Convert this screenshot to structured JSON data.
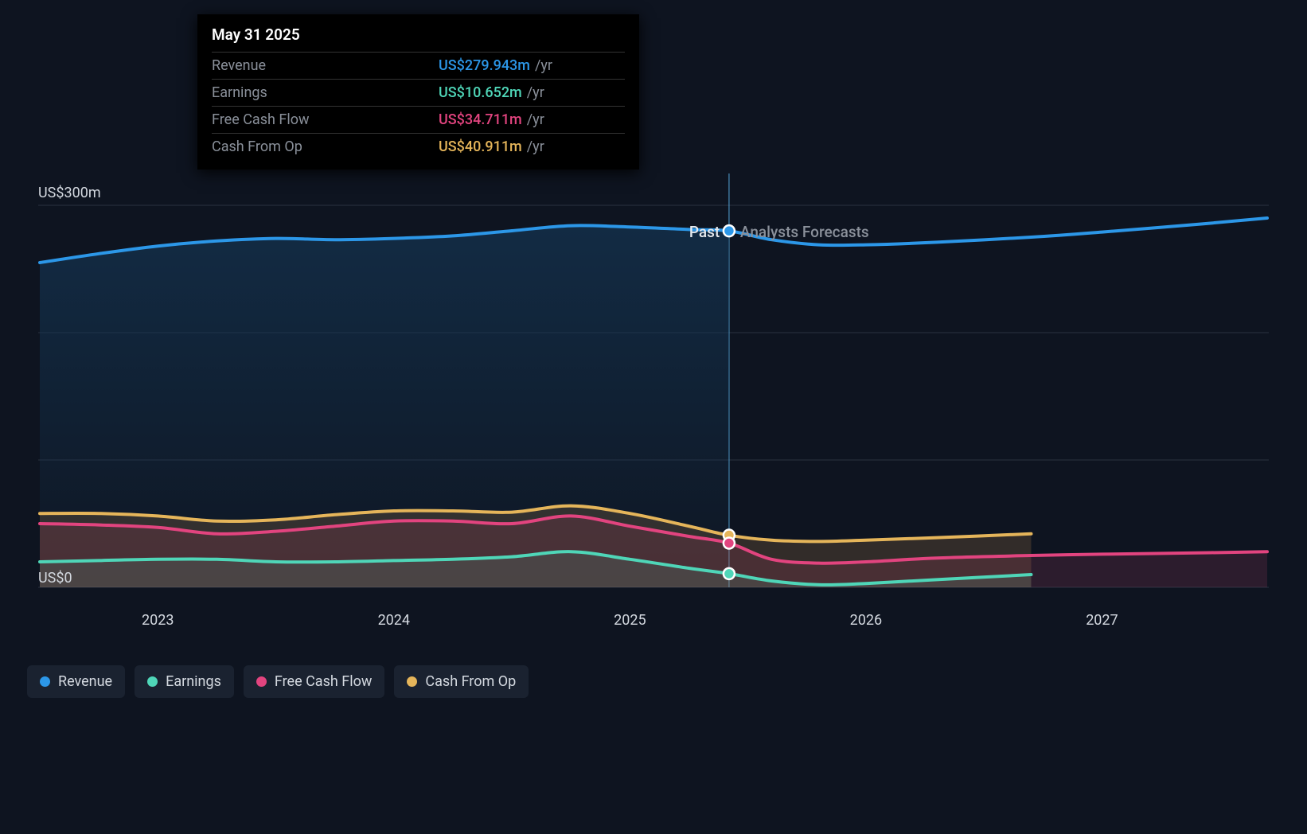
{
  "chart": {
    "type": "area-line",
    "background_color": "#0e1420",
    "text_color": "#d4d9e0",
    "grid_color": "#2a3240",
    "y_axis": {
      "label_top": "US$300m",
      "label_bottom": "US$0",
      "domain": [
        0,
        300
      ],
      "gridlines_at": [
        0,
        100,
        200,
        300
      ]
    },
    "x_axis": {
      "domain_years": [
        2022.5,
        2027.7
      ],
      "labels": [
        "2023",
        "2024",
        "2025",
        "2026",
        "2027"
      ]
    },
    "divider": {
      "x_year": 2025.42,
      "past_label": "Past",
      "past_color": "#e6e9ee",
      "forecast_label": "Analysts Forecasts",
      "forecast_color": "#8a909a",
      "line_color": "#5db6ed",
      "past_fill": "#143553",
      "past_fill_opacity": 0.45
    },
    "series": [
      {
        "id": "revenue",
        "label": "Revenue",
        "color": "#2c97e8",
        "fill": "#2c97e8",
        "fill_opacity": 0.18,
        "line_width": 4,
        "points_year_value": [
          [
            2022.5,
            255
          ],
          [
            2022.75,
            262
          ],
          [
            2023.0,
            268
          ],
          [
            2023.25,
            272
          ],
          [
            2023.5,
            274
          ],
          [
            2023.75,
            273
          ],
          [
            2024.0,
            274
          ],
          [
            2024.25,
            276
          ],
          [
            2024.5,
            280
          ],
          [
            2024.75,
            284
          ],
          [
            2025.0,
            283
          ],
          [
            2025.25,
            281
          ],
          [
            2025.42,
            279.9
          ],
          [
            2025.6,
            273
          ],
          [
            2025.8,
            269
          ],
          [
            2026.0,
            269
          ],
          [
            2026.3,
            271
          ],
          [
            2026.7,
            275
          ],
          [
            2027.0,
            279
          ],
          [
            2027.4,
            285
          ],
          [
            2027.7,
            290
          ]
        ],
        "marker": {
          "year": 2025.42,
          "value": 279.9
        }
      },
      {
        "id": "cash_from_op",
        "label": "Cash From Op",
        "color": "#e5b55a",
        "fill": "#b8844a",
        "fill_opacity": 0.22,
        "line_width": 4,
        "points_year_value": [
          [
            2022.5,
            58
          ],
          [
            2022.75,
            58
          ],
          [
            2023.0,
            56
          ],
          [
            2023.25,
            52
          ],
          [
            2023.5,
            53
          ],
          [
            2023.75,
            57
          ],
          [
            2024.0,
            60
          ],
          [
            2024.25,
            60
          ],
          [
            2024.5,
            59
          ],
          [
            2024.75,
            64
          ],
          [
            2025.0,
            58
          ],
          [
            2025.25,
            48
          ],
          [
            2025.42,
            40.9
          ],
          [
            2025.6,
            37
          ],
          [
            2025.8,
            36
          ],
          [
            2026.0,
            37
          ],
          [
            2026.3,
            39
          ],
          [
            2026.7,
            42
          ]
        ],
        "marker": {
          "year": 2025.42,
          "value": 40.9
        }
      },
      {
        "id": "free_cash_flow",
        "label": "Free Cash Flow",
        "color": "#e2447f",
        "fill": "#9b3a5d",
        "fill_opacity": 0.22,
        "line_width": 4,
        "points_year_value": [
          [
            2022.5,
            50
          ],
          [
            2022.75,
            49
          ],
          [
            2023.0,
            47
          ],
          [
            2023.25,
            42
          ],
          [
            2023.5,
            44
          ],
          [
            2023.75,
            48
          ],
          [
            2024.0,
            52
          ],
          [
            2024.25,
            52
          ],
          [
            2024.5,
            50
          ],
          [
            2024.75,
            56
          ],
          [
            2025.0,
            48
          ],
          [
            2025.25,
            40
          ],
          [
            2025.42,
            34.7
          ],
          [
            2025.6,
            22
          ],
          [
            2025.8,
            19
          ],
          [
            2026.0,
            20
          ],
          [
            2026.3,
            23
          ],
          [
            2026.7,
            25
          ],
          [
            2027.0,
            26
          ],
          [
            2027.4,
            27
          ],
          [
            2027.7,
            28
          ]
        ],
        "marker": {
          "year": 2025.42,
          "value": 34.7
        }
      },
      {
        "id": "earnings",
        "label": "Earnings",
        "color": "#4fd6b8",
        "fill": "#4fd6b8",
        "fill_opacity": 0.12,
        "line_width": 4,
        "points_year_value": [
          [
            2022.5,
            20
          ],
          [
            2022.75,
            21
          ],
          [
            2023.0,
            22
          ],
          [
            2023.25,
            22
          ],
          [
            2023.5,
            20
          ],
          [
            2023.75,
            20
          ],
          [
            2024.0,
            21
          ],
          [
            2024.25,
            22
          ],
          [
            2024.5,
            24
          ],
          [
            2024.75,
            28
          ],
          [
            2025.0,
            22
          ],
          [
            2025.25,
            15
          ],
          [
            2025.42,
            10.7
          ],
          [
            2025.6,
            5
          ],
          [
            2025.8,
            2
          ],
          [
            2026.0,
            3
          ],
          [
            2026.3,
            6
          ],
          [
            2026.7,
            10
          ]
        ],
        "marker": {
          "year": 2025.42,
          "value": 10.7
        }
      }
    ]
  },
  "tooltip": {
    "title": "May 31 2025",
    "rows": [
      {
        "label": "Revenue",
        "value": "US$279.943m",
        "suffix": "/yr",
        "color": "#2c97e8"
      },
      {
        "label": "Earnings",
        "value": "US$10.652m",
        "suffix": "/yr",
        "color": "#4fd6b8"
      },
      {
        "label": "Free Cash Flow",
        "value": "US$34.711m",
        "suffix": "/yr",
        "color": "#e2447f"
      },
      {
        "label": "Cash From Op",
        "value": "US$40.911m",
        "suffix": "/yr",
        "color": "#e5b55a"
      }
    ]
  },
  "legend": {
    "items": [
      {
        "id": "revenue",
        "label": "Revenue",
        "color": "#2c97e8"
      },
      {
        "id": "earnings",
        "label": "Earnings",
        "color": "#4fd6b8"
      },
      {
        "id": "free_cash_flow",
        "label": "Free Cash Flow",
        "color": "#e2447f"
      },
      {
        "id": "cash_from_op",
        "label": "Cash From Op",
        "color": "#e5b55a"
      }
    ]
  }
}
